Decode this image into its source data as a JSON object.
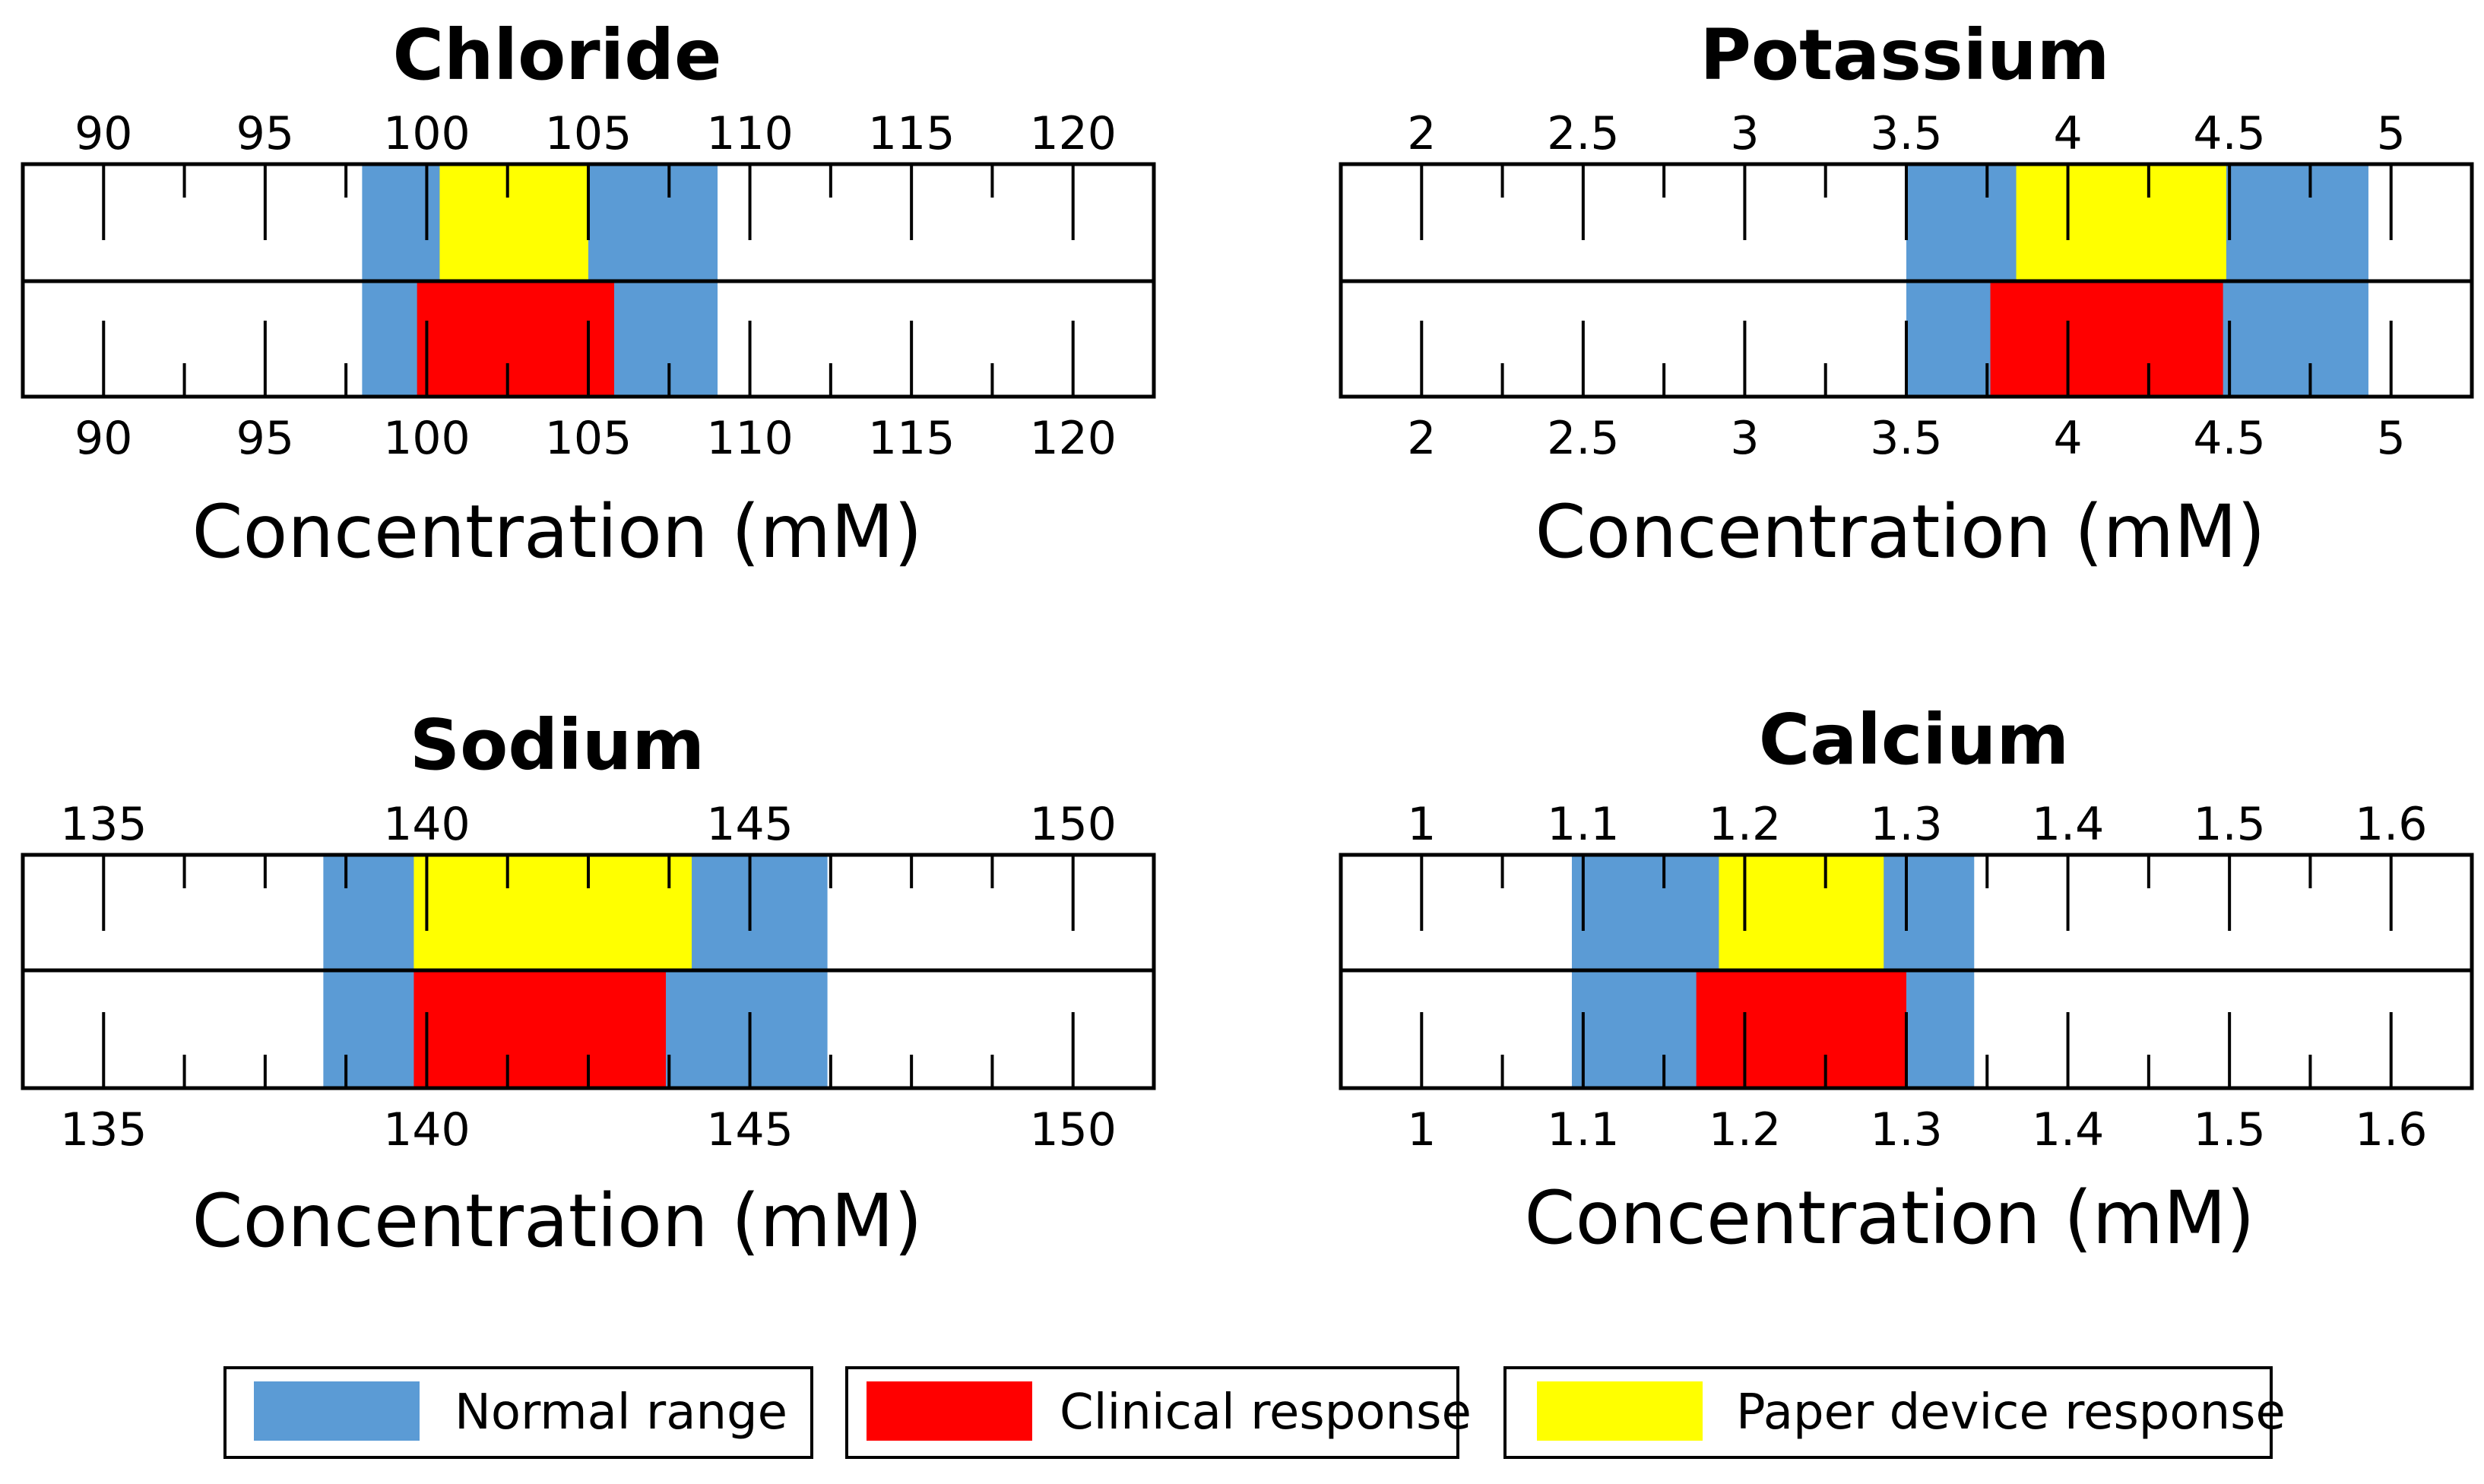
{
  "colors": {
    "normal": "#5b9bd5",
    "clinical": "#ff0000",
    "paper": "#ffff00",
    "line": "#000000"
  },
  "legend": [
    {
      "key": "normal",
      "label": "Normal range"
    },
    {
      "key": "clinical",
      "label": "Clinical response"
    },
    {
      "key": "paper",
      "label": "Paper device response"
    }
  ],
  "chart_data": [
    {
      "type": "range-bar",
      "title": "Chloride",
      "xlabel": "Concentration (mM)",
      "xlim": [
        87.5,
        122.5
      ],
      "major_ticks": [
        90,
        95,
        100,
        105,
        110,
        115,
        120
      ],
      "tick_labels": [
        "90",
        "95",
        "100",
        "105",
        "110",
        "115",
        "120"
      ],
      "minor_ticks": [
        92.5,
        97.5,
        102.5,
        107.5,
        112.5,
        117.5
      ],
      "normal_range": [
        98,
        109
      ],
      "paper_device_response": [
        100.4,
        105
      ],
      "clinical_response": [
        99.7,
        105.8
      ]
    },
    {
      "type": "range-bar",
      "title": "Potassium",
      "xlabel": "Concentration (mM)",
      "xlim": [
        1.75,
        5.25
      ],
      "major_ticks": [
        2,
        2.5,
        3,
        3.5,
        4,
        4.5,
        5
      ],
      "tick_labels": [
        "2",
        "2.5",
        "3",
        "3.5",
        "4",
        "4.5",
        "5"
      ],
      "minor_ticks": [
        2.25,
        2.75,
        3.25,
        3.75,
        4.25,
        4.75
      ],
      "normal_range": [
        3.5,
        4.93
      ],
      "paper_device_response": [
        3.84,
        4.49
      ],
      "clinical_response": [
        3.76,
        4.48
      ]
    },
    {
      "type": "range-bar",
      "title": "Sodium",
      "xlabel": "Concentration (mM)",
      "xlim": [
        133.75,
        151.25
      ],
      "major_ticks": [
        135,
        140,
        145,
        150
      ],
      "tick_labels": [
        "135",
        "140",
        "145",
        "150"
      ],
      "minor_ticks": [
        136.25,
        137.5,
        138.75,
        141.25,
        142.5,
        143.75,
        146.25,
        147.5,
        148.75
      ],
      "normal_range": [
        138.4,
        146.2
      ],
      "paper_device_response": [
        139.8,
        144.1
      ],
      "clinical_response": [
        139.8,
        143.7
      ]
    },
    {
      "type": "range-bar",
      "title": "Calcium",
      "xlabel": "Concentration (mM)",
      "xlim": [
        0.95,
        1.65
      ],
      "major_ticks": [
        1,
        1.1,
        1.2,
        1.3,
        1.4,
        1.5,
        1.6
      ],
      "tick_labels": [
        "1",
        "1.1",
        "1.2",
        "1.3",
        "1.4",
        "1.5",
        "1.6"
      ],
      "minor_ticks": [
        1.05,
        1.15,
        1.25,
        1.35,
        1.45,
        1.55
      ],
      "normal_range": [
        1.093,
        1.342
      ],
      "paper_device_response": [
        1.184,
        1.286
      ],
      "clinical_response": [
        1.17,
        1.3
      ]
    }
  ]
}
